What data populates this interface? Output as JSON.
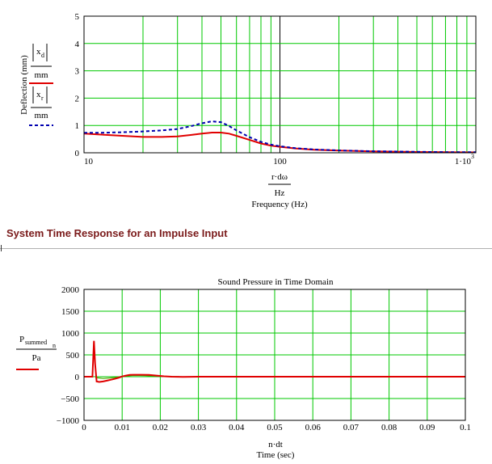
{
  "section_heading": "System Time Response for an Impulse Input",
  "chart_data": [
    {
      "type": "line",
      "title": "",
      "x_scale": "log",
      "xlim": [
        10,
        1000
      ],
      "ylim": [
        0,
        5
      ],
      "x_ticks": [
        "10",
        "100",
        "1·10"
      ],
      "x_tick_exponent": "3",
      "y_ticks": [
        "0",
        "1",
        "2",
        "3",
        "4",
        "5"
      ],
      "xlabel_top": "r·dω",
      "xlabel_unit": "Hz",
      "xlabel": "Frequency (Hz)",
      "ylabel": "Deflection (mm)",
      "legend": [
        {
          "num": "x",
          "sub": "d",
          "den": "mm"
        },
        {
          "num": "x",
          "sub": "r",
          "den": "mm"
        }
      ],
      "grid": true,
      "series": [
        {
          "color": "#e00000",
          "style": "solid",
          "points": [
            [
              10,
              0.7
            ],
            [
              12,
              0.67
            ],
            [
              15,
              0.63
            ],
            [
              20,
              0.58
            ],
            [
              25,
              0.58
            ],
            [
              30,
              0.6
            ],
            [
              35,
              0.65
            ],
            [
              40,
              0.7
            ],
            [
              45,
              0.74
            ],
            [
              50,
              0.74
            ],
            [
              55,
              0.7
            ],
            [
              60,
              0.62
            ],
            [
              70,
              0.47
            ],
            [
              80,
              0.34
            ],
            [
              90,
              0.26
            ],
            [
              100,
              0.22
            ],
            [
              120,
              0.16
            ],
            [
              150,
              0.11
            ],
            [
              200,
              0.08
            ],
            [
              300,
              0.05
            ],
            [
              500,
              0.03
            ],
            [
              700,
              0.02
            ],
            [
              1000,
              0.015
            ]
          ]
        },
        {
          "color": "#0000b0",
          "style": "dashed",
          "points": [
            [
              10,
              0.73
            ],
            [
              12,
              0.73
            ],
            [
              15,
              0.75
            ],
            [
              20,
              0.78
            ],
            [
              25,
              0.82
            ],
            [
              30,
              0.87
            ],
            [
              35,
              0.97
            ],
            [
              40,
              1.08
            ],
            [
              45,
              1.15
            ],
            [
              50,
              1.12
            ],
            [
              55,
              0.98
            ],
            [
              60,
              0.82
            ],
            [
              70,
              0.57
            ],
            [
              80,
              0.4
            ],
            [
              90,
              0.3
            ],
            [
              100,
              0.24
            ],
            [
              120,
              0.17
            ],
            [
              150,
              0.12
            ],
            [
              200,
              0.085
            ],
            [
              300,
              0.055
            ],
            [
              500,
              0.035
            ],
            [
              700,
              0.025
            ],
            [
              1000,
              0.02
            ]
          ]
        }
      ]
    },
    {
      "type": "line",
      "title": "Sound Pressure in Time Domain",
      "xlim": [
        0,
        0.1
      ],
      "ylim": [
        -1000,
        2000
      ],
      "x_ticks": [
        "0",
        "0.01",
        "0.02",
        "0.03",
        "0.04",
        "0.05",
        "0.06",
        "0.07",
        "0.08",
        "0.09",
        "0.1"
      ],
      "y_ticks": [
        "−1000",
        "−500",
        "0",
        "500",
        "1000",
        "1500",
        "2000"
      ],
      "xlabel_top": "n·dt",
      "xlabel": "Time (sec)",
      "ylabel_main": "P",
      "ylabel_sub": "summed",
      "ylabel_subsub": "n",
      "ylabel_den": "Pa",
      "grid": true,
      "series": [
        {
          "color": "#e00000",
          "style": "solid",
          "points": [
            [
              0,
              0
            ],
            [
              0.0022,
              0
            ],
            [
              0.0026,
              820
            ],
            [
              0.0029,
              300
            ],
            [
              0.0033,
              -110
            ],
            [
              0.004,
              -120
            ],
            [
              0.005,
              -110
            ],
            [
              0.006,
              -90
            ],
            [
              0.007,
              -70
            ],
            [
              0.008,
              -50
            ],
            [
              0.009,
              -25
            ],
            [
              0.01,
              5
            ],
            [
              0.011,
              25
            ],
            [
              0.012,
              40
            ],
            [
              0.013,
              45
            ],
            [
              0.015,
              45
            ],
            [
              0.017,
              40
            ],
            [
              0.019,
              25
            ],
            [
              0.021,
              10
            ],
            [
              0.023,
              0
            ],
            [
              0.026,
              -5
            ],
            [
              0.03,
              0
            ],
            [
              0.04,
              0
            ],
            [
              0.06,
              0
            ],
            [
              0.08,
              0
            ],
            [
              0.1,
              0
            ]
          ]
        },
        {
          "color": "#44aa00",
          "style": "solid",
          "points": [
            [
              0.003,
              -20
            ],
            [
              0.005,
              -40
            ],
            [
              0.008,
              -20
            ],
            [
              0.01,
              10
            ],
            [
              0.013,
              30
            ],
            [
              0.016,
              25
            ],
            [
              0.02,
              5
            ],
            [
              0.025,
              0
            ]
          ]
        }
      ]
    }
  ]
}
